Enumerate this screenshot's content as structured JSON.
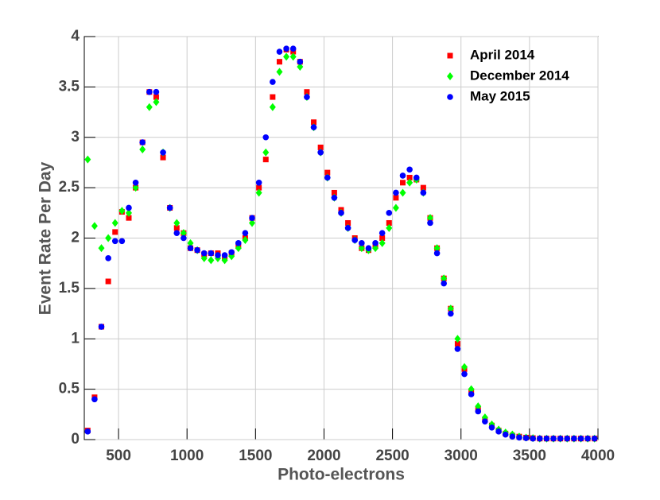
{
  "chart_data": {
    "type": "scatter",
    "x_label": "Photo-electrons",
    "y_label": "Event Rate Per Day",
    "xlim": [
      250,
      4000
    ],
    "ylim": [
      0,
      4
    ],
    "xticks": [
      500,
      1000,
      1500,
      2000,
      2500,
      3000,
      3500,
      4000
    ],
    "yticks": [
      0,
      0.5,
      1,
      1.5,
      2,
      2.5,
      3,
      3.5,
      4
    ],
    "grid": true,
    "legend": "upper right",
    "x": [
      275,
      325,
      375,
      425,
      475,
      525,
      575,
      625,
      675,
      725,
      775,
      825,
      875,
      925,
      975,
      1025,
      1075,
      1125,
      1175,
      1225,
      1275,
      1325,
      1375,
      1425,
      1475,
      1525,
      1575,
      1625,
      1675,
      1725,
      1775,
      1825,
      1875,
      1925,
      1975,
      2025,
      2075,
      2125,
      2175,
      2225,
      2275,
      2325,
      2375,
      2425,
      2475,
      2525,
      2575,
      2625,
      2675,
      2725,
      2775,
      2825,
      2875,
      2925,
      2975,
      3025,
      3075,
      3125,
      3175,
      3225,
      3275,
      3325,
      3375,
      3425,
      3475,
      3525,
      3575,
      3625,
      3675,
      3725,
      3775,
      3825,
      3875,
      3925,
      3975
    ],
    "series": [
      {
        "name": "April 2014",
        "color": "#ff0000",
        "marker": "square",
        "values": [
          0.09,
          0.42,
          1.12,
          1.57,
          2.06,
          2.26,
          2.2,
          2.5,
          2.95,
          3.45,
          3.4,
          2.8,
          2.3,
          2.1,
          2.05,
          1.9,
          1.88,
          1.84,
          1.85,
          1.85,
          1.8,
          1.85,
          1.92,
          2.0,
          2.2,
          2.5,
          2.78,
          3.4,
          3.75,
          3.87,
          3.85,
          3.75,
          3.45,
          3.15,
          2.9,
          2.65,
          2.45,
          2.28,
          2.15,
          2.0,
          1.9,
          1.88,
          1.92,
          2.0,
          2.15,
          2.4,
          2.55,
          2.6,
          2.58,
          2.5,
          2.2,
          1.9,
          1.6,
          1.3,
          0.95,
          0.7,
          0.48,
          0.3,
          0.2,
          0.14,
          0.09,
          0.06,
          0.04,
          0.03,
          0.02,
          0.015,
          0.01,
          0.01,
          0.01,
          0.01,
          0.01,
          0.01,
          0.01,
          0.01,
          0.01
        ]
      },
      {
        "name": "December 2014",
        "color": "#00ff00",
        "marker": "diamond",
        "values": [
          2.78,
          2.12,
          1.9,
          2.0,
          2.15,
          2.27,
          2.25,
          2.5,
          2.88,
          3.3,
          3.35,
          2.85,
          2.3,
          2.15,
          2.05,
          1.95,
          1.88,
          1.8,
          1.78,
          1.8,
          1.78,
          1.82,
          1.9,
          1.98,
          2.15,
          2.45,
          2.85,
          3.3,
          3.65,
          3.8,
          3.8,
          3.7,
          3.4,
          3.1,
          2.85,
          2.6,
          2.4,
          2.25,
          2.1,
          1.98,
          1.9,
          1.88,
          1.9,
          1.95,
          2.1,
          2.3,
          2.45,
          2.55,
          2.58,
          2.45,
          2.2,
          1.9,
          1.6,
          1.3,
          1.0,
          0.72,
          0.5,
          0.33,
          0.22,
          0.15,
          0.1,
          0.07,
          0.05,
          0.03,
          0.02,
          0.015,
          0.01,
          0.01,
          0.01,
          0.01,
          0.01,
          0.01,
          0.01,
          0.01,
          0.01
        ]
      },
      {
        "name": "May 2015",
        "color": "#0000ff",
        "marker": "circle",
        "values": [
          0.08,
          0.4,
          1.12,
          1.8,
          1.97,
          1.97,
          2.3,
          2.55,
          2.95,
          3.45,
          3.45,
          2.85,
          2.3,
          2.05,
          2.0,
          1.9,
          1.88,
          1.85,
          1.85,
          1.83,
          1.83,
          1.86,
          1.95,
          2.05,
          2.2,
          2.55,
          3.0,
          3.55,
          3.85,
          3.88,
          3.88,
          3.75,
          3.4,
          3.1,
          2.85,
          2.6,
          2.4,
          2.25,
          2.1,
          1.98,
          1.95,
          1.9,
          1.95,
          2.05,
          2.25,
          2.45,
          2.62,
          2.68,
          2.6,
          2.45,
          2.15,
          1.85,
          1.55,
          1.25,
          0.9,
          0.65,
          0.45,
          0.28,
          0.18,
          0.12,
          0.08,
          0.05,
          0.03,
          0.02,
          0.015,
          0.01,
          0.01,
          0.01,
          0.01,
          0.01,
          0.01,
          0.01,
          0.01,
          0.01,
          0.01
        ]
      }
    ]
  }
}
